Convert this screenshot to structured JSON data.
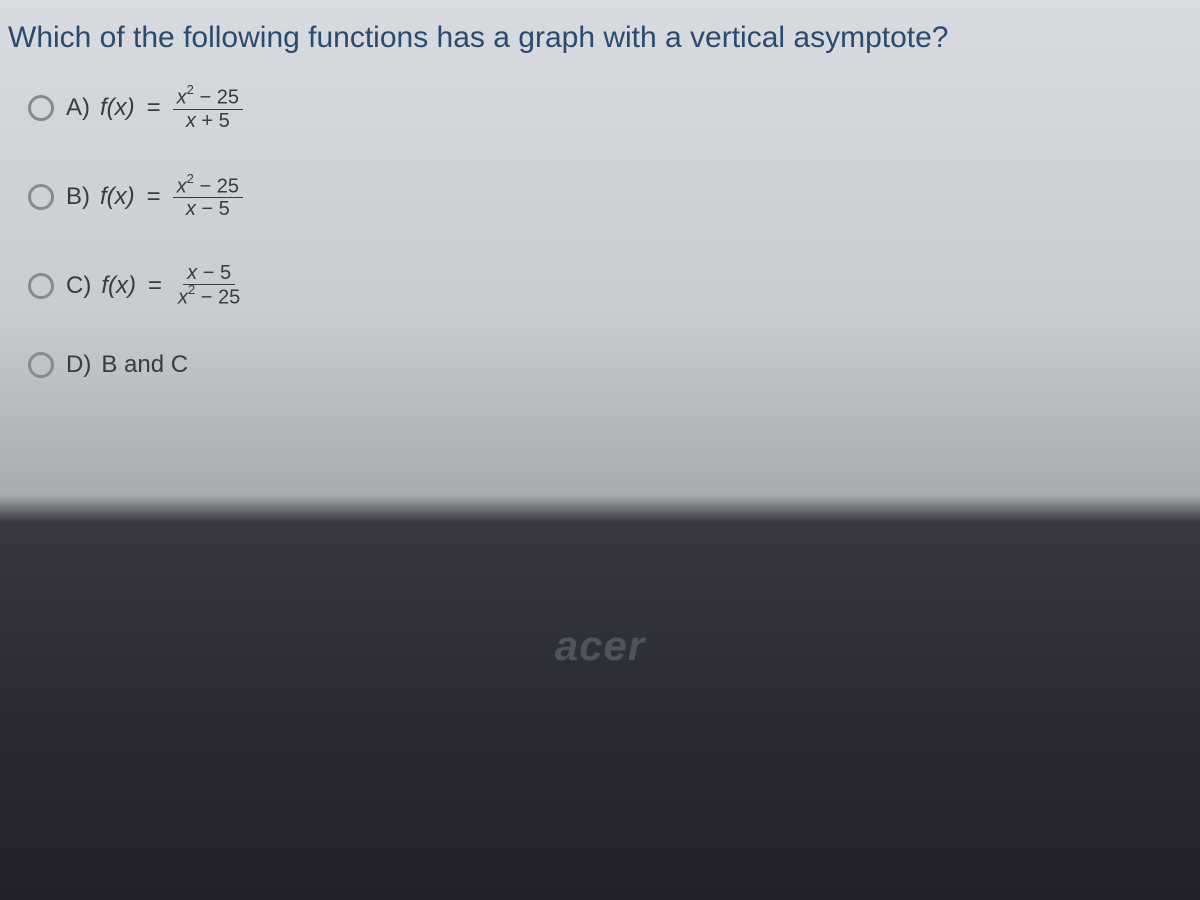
{
  "question": {
    "text": "Which of the following functions has a graph with a vertical asymptote?",
    "text_color": "#2b4a6e",
    "font_size": 30
  },
  "options": [
    {
      "label": "A)",
      "func_prefix": "f(x)",
      "equals": "=",
      "numerator_parts": {
        "x_var": "x",
        "exp": "2",
        "rest": " − 25"
      },
      "denominator_parts": {
        "x_var": "x",
        "rest": " + 5"
      },
      "has_fraction": true,
      "selected": false
    },
    {
      "label": "B)",
      "func_prefix": "f(x)",
      "equals": "=",
      "numerator_parts": {
        "x_var": "x",
        "exp": "2",
        "rest": " − 25"
      },
      "denominator_parts": {
        "x_var": "x",
        "rest": " − 5"
      },
      "has_fraction": true,
      "selected": false
    },
    {
      "label": "C)",
      "func_prefix": "f(x)",
      "equals": "=",
      "numerator_parts": {
        "x_var": "x",
        "exp": "",
        "rest": " − 5"
      },
      "denominator_parts": {
        "x_var": "x",
        "exp": "2",
        "rest": " − 25"
      },
      "has_fraction": true,
      "selected": false
    },
    {
      "label": "D)",
      "plain_text": "B and C",
      "has_fraction": false,
      "selected": false
    }
  ],
  "watermark": {
    "text": "acer",
    "color": "rgba(120, 128, 140, 0.45)",
    "font_size": 42
  },
  "styling": {
    "background_gradient": [
      "#d8dce0",
      "#c8ccd0",
      "#a8acb0",
      "#383840",
      "#2a2a32",
      "#22222a"
    ],
    "radio_border_color": "#888a90",
    "option_text_color": "#3a3a40",
    "option_font_size": 24,
    "fraction_font_size": 20
  }
}
